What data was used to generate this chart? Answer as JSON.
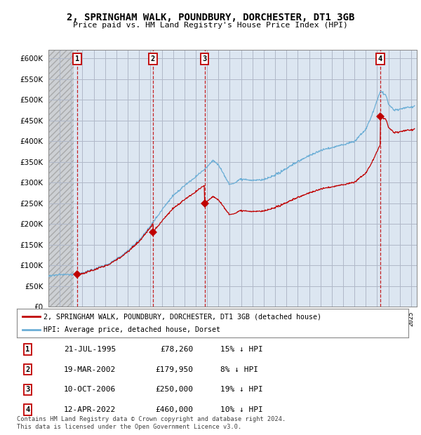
{
  "title": "2, SPRINGHAM WALK, POUNDBURY, DORCHESTER, DT1 3GB",
  "subtitle": "Price paid vs. HM Land Registry's House Price Index (HPI)",
  "ylim": [
    0,
    620000
  ],
  "yticks": [
    0,
    50000,
    100000,
    150000,
    200000,
    250000,
    300000,
    350000,
    400000,
    450000,
    500000,
    550000,
    600000
  ],
  "xlim_start": 1993.0,
  "xlim_end": 2025.5,
  "hatch_end_year": 1995.2,
  "purchases": [
    {
      "label": "1",
      "date_x": 1995.55,
      "price": 78260,
      "date_str": "21-JUL-1995",
      "price_str": "£78,260",
      "pct": "15% ↓ HPI"
    },
    {
      "label": "2",
      "date_x": 2002.22,
      "price": 179950,
      "date_str": "19-MAR-2002",
      "price_str": "£179,950",
      "pct": "8% ↓ HPI"
    },
    {
      "label": "3",
      "date_x": 2006.78,
      "price": 250000,
      "date_str": "10-OCT-2006",
      "price_str": "£250,000",
      "pct": "19% ↓ HPI"
    },
    {
      "label": "4",
      "date_x": 2022.28,
      "price": 460000,
      "date_str": "12-APR-2022",
      "price_str": "£460,000",
      "pct": "10% ↓ HPI"
    }
  ],
  "hpi_color": "#6baed6",
  "price_color": "#c00000",
  "grid_color": "#b0b8c8",
  "background_color": "#dce6f1",
  "legend_label_price": "2, SPRINGHAM WALK, POUNDBURY, DORCHESTER, DT1 3GB (detached house)",
  "legend_label_hpi": "HPI: Average price, detached house, Dorset",
  "footer": "Contains HM Land Registry data © Crown copyright and database right 2024.\nThis data is licensed under the Open Government Licence v3.0."
}
